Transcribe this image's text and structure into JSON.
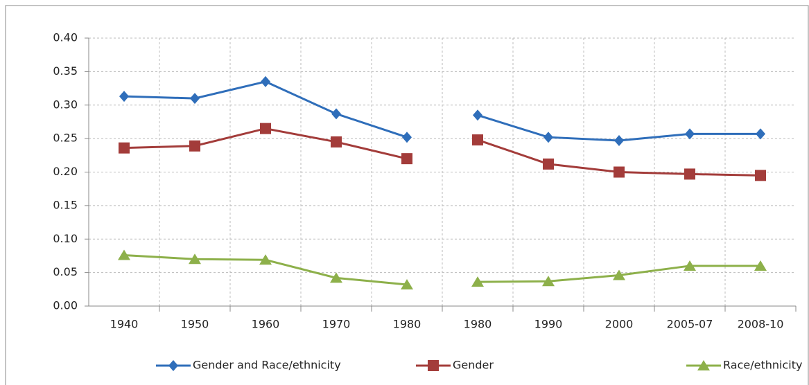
{
  "chart_data": {
    "type": "line",
    "categories": [
      "1940",
      "1950",
      "1960",
      "1970",
      "1980",
      "1980",
      "1990",
      "2000",
      "2005-07",
      "2008-10"
    ],
    "break_before": 5,
    "series": [
      {
        "name": "Gender and Race/ethnicity",
        "color": "#2f6eba",
        "marker": "diamond",
        "values": [
          0.313,
          0.31,
          0.335,
          0.287,
          0.252,
          0.285,
          0.252,
          0.247,
          0.257,
          0.257
        ]
      },
      {
        "name": "Gender",
        "color": "#a33c3a",
        "marker": "square",
        "values": [
          0.236,
          0.239,
          0.265,
          0.245,
          0.22,
          0.248,
          0.212,
          0.2,
          0.197,
          0.195
        ]
      },
      {
        "name": "Race/ethnicity",
        "color": "#8db04a",
        "marker": "triangle",
        "values": [
          0.076,
          0.07,
          0.069,
          0.042,
          0.032,
          0.036,
          0.037,
          0.046,
          0.06,
          0.06
        ]
      }
    ],
    "ylim": [
      0,
      0.4
    ],
    "yticks": [
      {
        "value": 0,
        "label": "0.00"
      },
      {
        "value": 0.05,
        "label": "0.05"
      },
      {
        "value": 0.1,
        "label": "0.10"
      },
      {
        "value": 0.15,
        "label": "0.15"
      },
      {
        "value": 0.2,
        "label": "0.20"
      },
      {
        "value": 0.25,
        "label": "0.25"
      },
      {
        "value": 0.3,
        "label": "0.30"
      },
      {
        "value": 0.35,
        "label": "0.35"
      },
      {
        "value": 0.4,
        "label": "0.40"
      }
    ],
    "grid": true,
    "legend": "bottom"
  }
}
